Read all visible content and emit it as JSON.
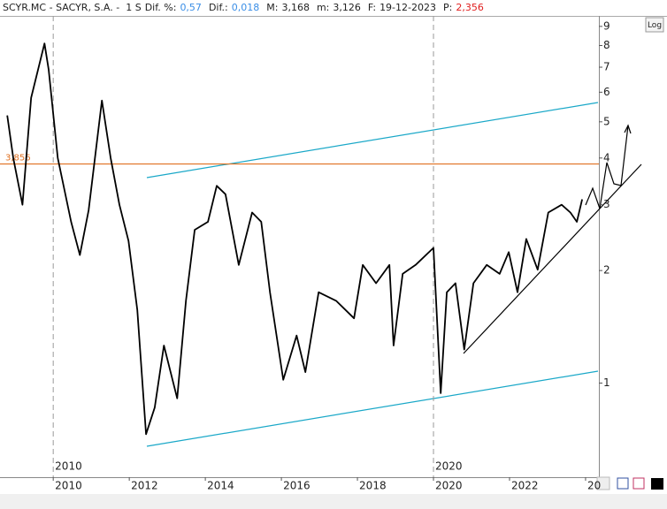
{
  "chart_data": {
    "type": "line",
    "title": "SCYR.MC - SACYR, S.A. -  1 S",
    "stats": [
      {
        "label": "Dif. %:",
        "value": "0,57",
        "color": "#3a8ee6"
      },
      {
        "label": "Dif.:",
        "value": "0,018",
        "color": "#3a8ee6"
      },
      {
        "label": "M:",
        "value": "3,168",
        "color": "#222222"
      },
      {
        "label": "m:",
        "value": "3,126",
        "color": "#222222"
      },
      {
        "label": "F:",
        "value": "19-12-2023",
        "color": "#222222"
      },
      {
        "label": "P:",
        "value": "2,356",
        "color": "#e02020"
      }
    ],
    "log_scale": true,
    "log_button": "Log",
    "xlim": [
      2008.6,
      2024.35
    ],
    "ylim": [
      0.56,
      9.6
    ],
    "xticks": [
      2010,
      2012,
      2014,
      2016,
      2018,
      2020,
      2022,
      {
        "value": 2024,
        "label": "20"
      }
    ],
    "yticks": [
      1,
      2,
      3,
      4,
      5,
      6,
      7,
      8,
      9
    ],
    "x_markers": [
      2010,
      2020
    ],
    "level": {
      "value": 3.856,
      "label": "3,856",
      "color": "#e07020"
    },
    "series": [
      {
        "name": "SCYR.MC",
        "color": "#000000",
        "x": [
          2008.79,
          2008.95,
          2009.19,
          2009.42,
          2009.77,
          2009.88,
          2010.12,
          2010.47,
          2010.7,
          2010.93,
          2011.28,
          2011.51,
          2011.74,
          2011.98,
          2012.21,
          2012.44,
          2012.67,
          2012.91,
          2013.26,
          2013.49,
          2013.72,
          2014.07,
          2014.3,
          2014.53,
          2014.88,
          2015.23,
          2015.47,
          2015.7,
          2016.05,
          2016.4,
          2016.63,
          2016.98,
          2017.44,
          2017.91,
          2018.14,
          2018.49,
          2018.84,
          2018.95,
          2019.19,
          2019.53,
          2020.0,
          2020.19,
          2020.35,
          2020.58,
          2020.81,
          2021.05,
          2021.4,
          2021.74,
          2021.98,
          2022.21,
          2022.44,
          2022.74,
          2023.02,
          2023.37,
          2023.6,
          2023.77,
          2023.91
        ],
        "values": [
          5.2,
          4.0,
          3.0,
          5.8,
          8.1,
          6.9,
          4.0,
          2.7,
          2.2,
          2.9,
          5.7,
          4.0,
          3.0,
          2.4,
          1.57,
          0.73,
          0.86,
          1.26,
          0.91,
          1.66,
          2.57,
          2.7,
          3.37,
          3.2,
          2.07,
          2.86,
          2.7,
          1.75,
          1.02,
          1.34,
          1.07,
          1.75,
          1.66,
          1.49,
          2.07,
          1.85,
          2.07,
          1.26,
          1.96,
          2.07,
          2.3,
          0.94,
          1.75,
          1.85,
          1.23,
          1.85,
          2.07,
          1.96,
          2.24,
          1.75,
          2.43,
          2.01,
          2.86,
          3.0,
          2.86,
          2.7,
          3.1
        ]
      }
    ]
  }
}
